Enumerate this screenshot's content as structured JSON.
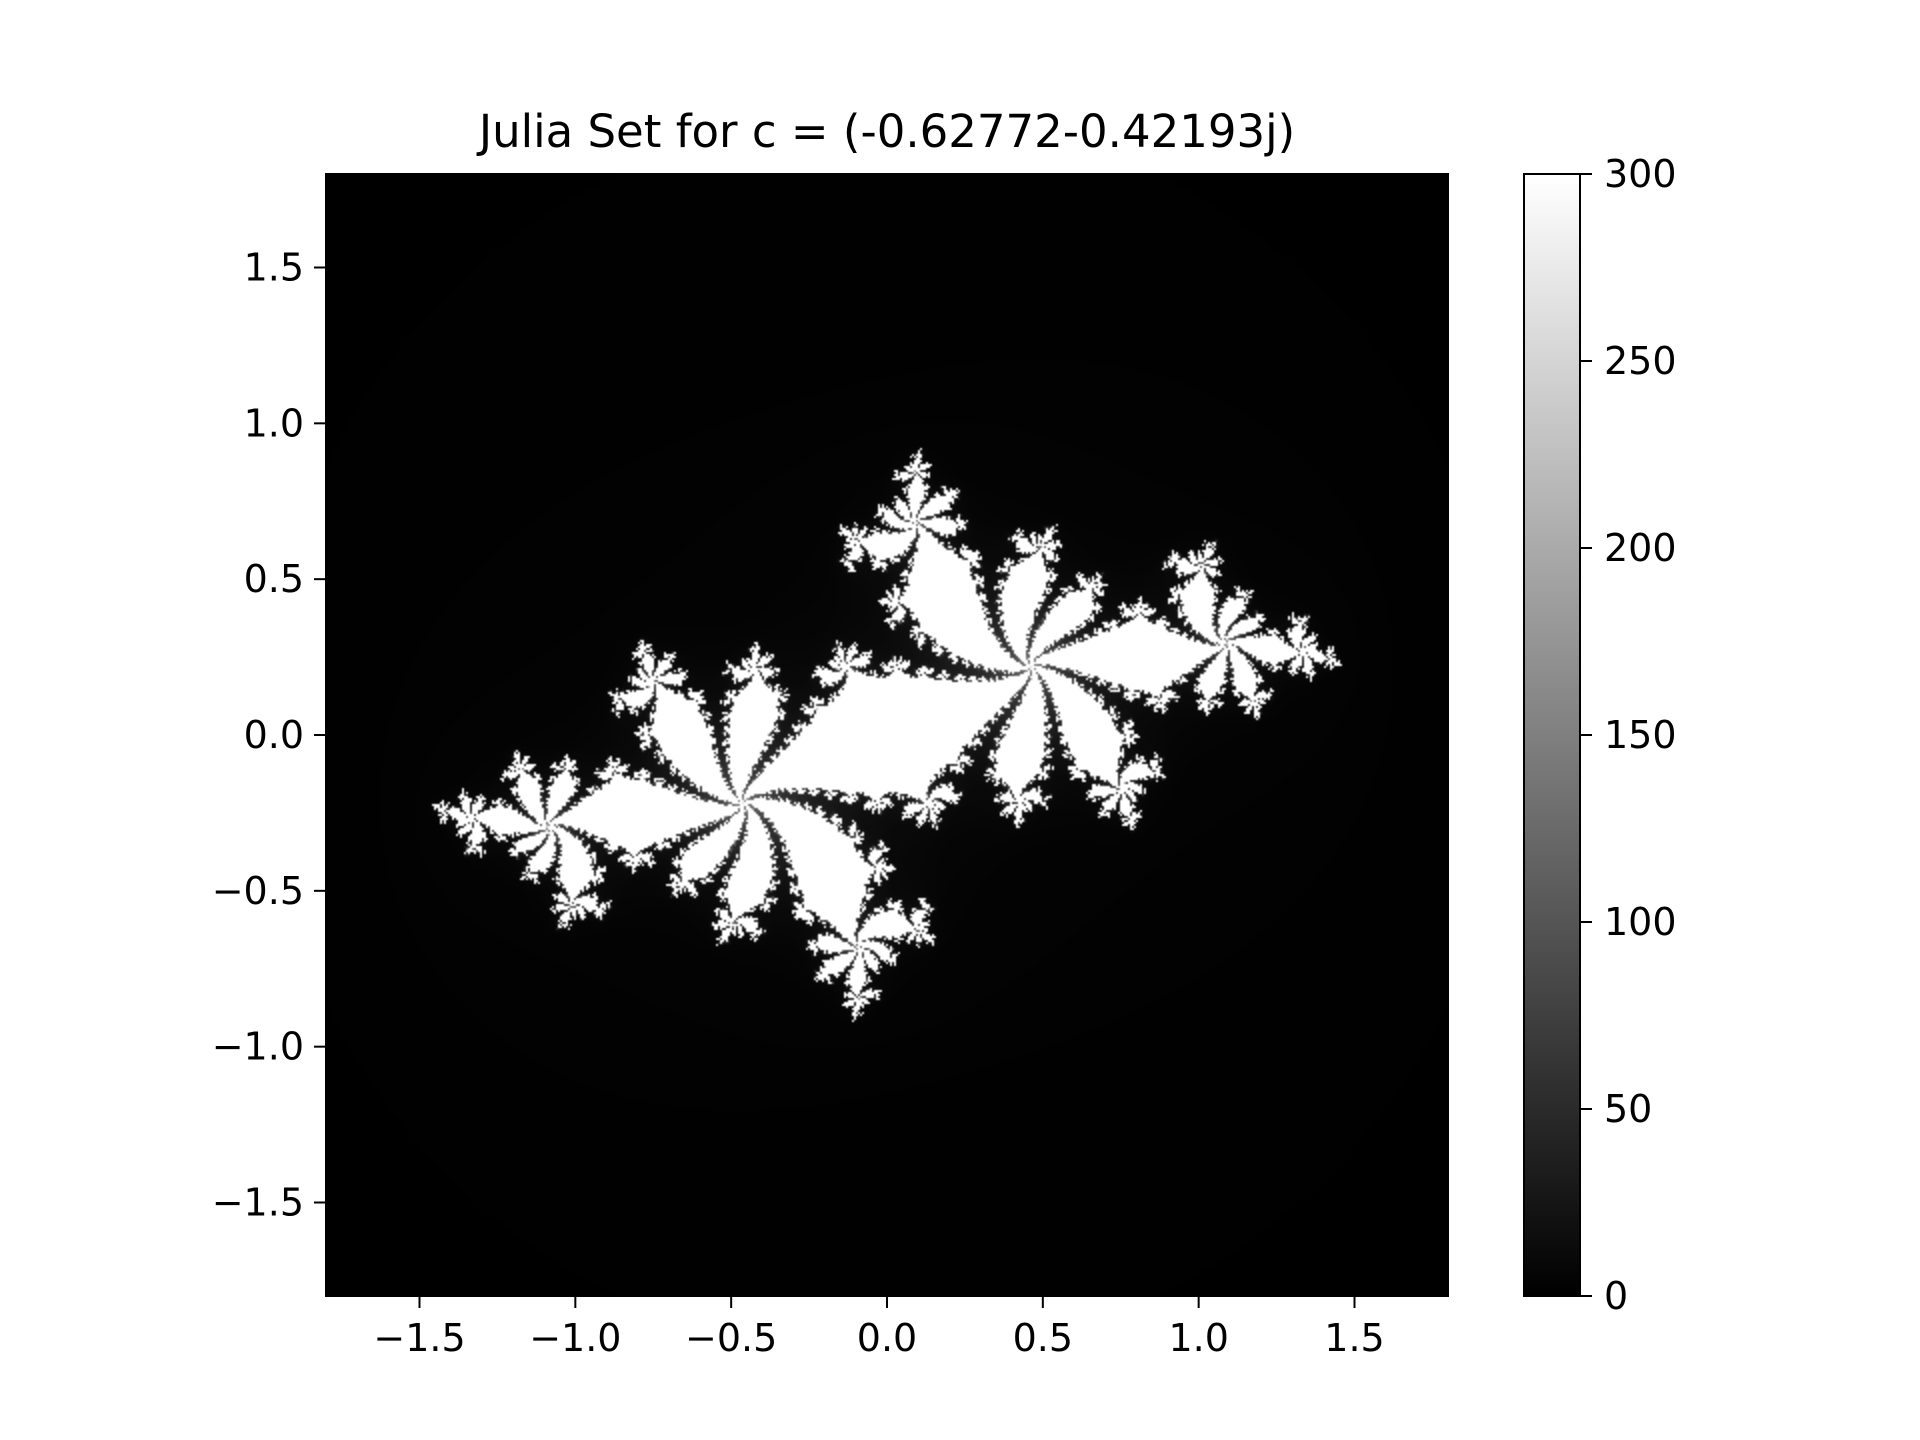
{
  "chart_data": {
    "type": "heatmap",
    "title": "Julia Set for c = (-0.62772-0.42193j)",
    "xlabel": "",
    "ylabel": "",
    "c": {
      "re": -0.62772,
      "im": -0.42193
    },
    "xlim": [
      -1.8,
      1.8
    ],
    "ylim": [
      -1.8,
      1.8
    ],
    "x_ticks": [
      {
        "value": -1.5,
        "label": "−1.5"
      },
      {
        "value": -1.0,
        "label": "−1.0"
      },
      {
        "value": -0.5,
        "label": "−0.5"
      },
      {
        "value": 0.0,
        "label": "0.0"
      },
      {
        "value": 0.5,
        "label": "0.5"
      },
      {
        "value": 1.0,
        "label": "1.0"
      },
      {
        "value": 1.5,
        "label": "1.5"
      }
    ],
    "y_ticks": [
      {
        "value": 1.5,
        "label": "1.5"
      },
      {
        "value": 1.0,
        "label": "1.0"
      },
      {
        "value": 0.5,
        "label": "0.5"
      },
      {
        "value": 0.0,
        "label": "0.0"
      },
      {
        "value": -0.5,
        "label": "−0.5"
      },
      {
        "value": -1.0,
        "label": "−1.0"
      },
      {
        "value": -1.5,
        "label": "−1.5"
      }
    ],
    "colormap": "gray",
    "colorbar": {
      "range": [
        0,
        300
      ],
      "ticks": [
        {
          "value": 0,
          "label": "0"
        },
        {
          "value": 50,
          "label": "50"
        },
        {
          "value": 100,
          "label": "100"
        },
        {
          "value": 150,
          "label": "150"
        },
        {
          "value": 200,
          "label": "200"
        },
        {
          "value": 250,
          "label": "250"
        },
        {
          "value": 300,
          "label": "300"
        }
      ]
    },
    "max_iterations": 300,
    "grid": false,
    "legend": "none"
  }
}
